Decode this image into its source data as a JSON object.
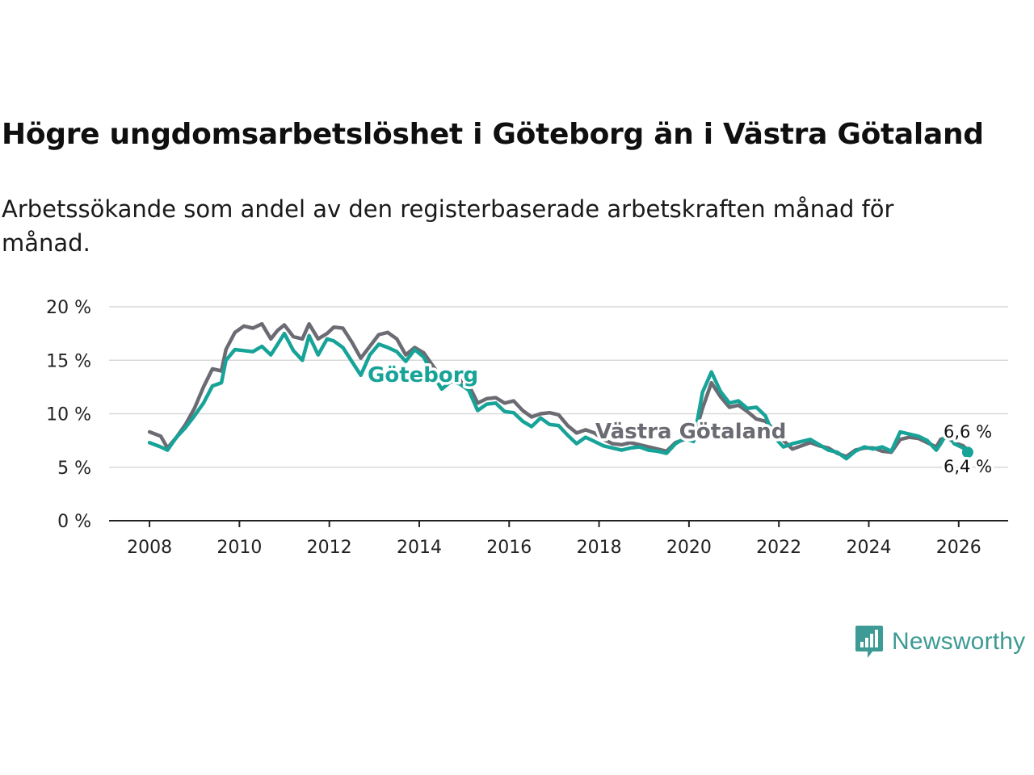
{
  "header": {
    "title": "Högre ungdomsarbetslöshet i Göteborg än i Västra Götaland",
    "subtitle": "Arbetssökande som andel av den registerbaserade arbetskraften månad för månad."
  },
  "brand": {
    "name": "Newsworthy",
    "icon": "newsworthy-chart-icon"
  },
  "colors": {
    "goteborg": "#17a398",
    "vastra": "#6b6b73",
    "grid": "#d9d9d9",
    "axis": "#222222",
    "brand": "#3d9a94"
  },
  "chart_data": {
    "type": "line",
    "title": "Högre ungdomsarbetslöshet i Göteborg än i Västra Götaland",
    "xlabel": "",
    "ylabel": "",
    "xlim": [
      2007.1,
      2027.1
    ],
    "ylim": [
      0,
      20
    ],
    "x_ticks": [
      2008,
      2010,
      2012,
      2014,
      2016,
      2018,
      2020,
      2022,
      2024,
      2026
    ],
    "y_ticks": [
      0,
      5,
      10,
      15,
      20
    ],
    "y_tick_labels": [
      "0 %",
      "5 %",
      "10 %",
      "15 %",
      "20 %"
    ],
    "series": [
      {
        "name": "Västra Götaland",
        "label": "Västra Götaland",
        "end_label": "6,6 %",
        "points": [
          [
            2008.0,
            8.3
          ],
          [
            2008.25,
            7.9
          ],
          [
            2008.4,
            6.8
          ],
          [
            2008.6,
            7.8
          ],
          [
            2008.8,
            9.0
          ],
          [
            2009.0,
            10.5
          ],
          [
            2009.2,
            12.5
          ],
          [
            2009.4,
            14.2
          ],
          [
            2009.6,
            14.0
          ],
          [
            2009.7,
            16.0
          ],
          [
            2009.9,
            17.6
          ],
          [
            2010.1,
            18.2
          ],
          [
            2010.3,
            18.0
          ],
          [
            2010.5,
            18.4
          ],
          [
            2010.7,
            17.0
          ],
          [
            2010.85,
            17.8
          ],
          [
            2011.0,
            18.3
          ],
          [
            2011.2,
            17.2
          ],
          [
            2011.4,
            17.0
          ],
          [
            2011.55,
            18.4
          ],
          [
            2011.75,
            17.0
          ],
          [
            2011.95,
            17.5
          ],
          [
            2012.1,
            18.1
          ],
          [
            2012.3,
            18.0
          ],
          [
            2012.5,
            16.7
          ],
          [
            2012.7,
            15.2
          ],
          [
            2012.9,
            16.3
          ],
          [
            2013.1,
            17.4
          ],
          [
            2013.3,
            17.6
          ],
          [
            2013.5,
            17.0
          ],
          [
            2013.7,
            15.5
          ],
          [
            2013.9,
            16.2
          ],
          [
            2014.1,
            15.7
          ],
          [
            2014.3,
            14.5
          ],
          [
            2014.5,
            13.3
          ],
          [
            2014.7,
            13.8
          ],
          [
            2014.9,
            13.2
          ],
          [
            2015.1,
            12.7
          ],
          [
            2015.3,
            11.0
          ],
          [
            2015.5,
            11.4
          ],
          [
            2015.7,
            11.5
          ],
          [
            2015.9,
            11.0
          ],
          [
            2016.1,
            11.2
          ],
          [
            2016.3,
            10.3
          ],
          [
            2016.5,
            9.7
          ],
          [
            2016.7,
            10.0
          ],
          [
            2016.9,
            10.1
          ],
          [
            2017.1,
            9.9
          ],
          [
            2017.3,
            8.9
          ],
          [
            2017.5,
            8.2
          ],
          [
            2017.7,
            8.5
          ],
          [
            2017.9,
            8.2
          ],
          [
            2018.1,
            7.6
          ],
          [
            2018.3,
            7.2
          ],
          [
            2018.5,
            7.1
          ],
          [
            2018.7,
            7.3
          ],
          [
            2018.9,
            7.1
          ],
          [
            2019.1,
            6.9
          ],
          [
            2019.3,
            6.7
          ],
          [
            2019.5,
            6.5
          ],
          [
            2019.7,
            7.3
          ],
          [
            2019.9,
            7.6
          ],
          [
            2020.1,
            7.6
          ],
          [
            2020.3,
            10.5
          ],
          [
            2020.5,
            12.9
          ],
          [
            2020.7,
            11.6
          ],
          [
            2020.9,
            10.6
          ],
          [
            2021.1,
            10.8
          ],
          [
            2021.3,
            10.2
          ],
          [
            2021.5,
            9.5
          ],
          [
            2021.7,
            9.3
          ],
          [
            2021.9,
            8.5
          ],
          [
            2022.1,
            7.5
          ],
          [
            2022.3,
            6.7
          ],
          [
            2022.5,
            7.0
          ],
          [
            2022.7,
            7.3
          ],
          [
            2022.9,
            7.0
          ],
          [
            2023.1,
            6.8
          ],
          [
            2023.3,
            6.3
          ],
          [
            2023.5,
            6.0
          ],
          [
            2023.7,
            6.6
          ],
          [
            2023.9,
            6.8
          ],
          [
            2024.1,
            6.8
          ],
          [
            2024.3,
            6.5
          ],
          [
            2024.5,
            6.4
          ],
          [
            2024.7,
            7.6
          ],
          [
            2024.9,
            7.8
          ],
          [
            2025.1,
            7.7
          ],
          [
            2025.3,
            7.3
          ],
          [
            2025.5,
            6.9
          ],
          [
            2025.6,
            7.6
          ],
          [
            2025.75,
            7.8
          ],
          [
            2025.9,
            7.3
          ],
          [
            2026.1,
            7.0
          ],
          [
            2026.2,
            6.6
          ]
        ]
      },
      {
        "name": "Göteborg",
        "label": "Göteborg",
        "end_label": "6,4 %",
        "points": [
          [
            2008.0,
            7.3
          ],
          [
            2008.25,
            6.9
          ],
          [
            2008.4,
            6.6
          ],
          [
            2008.6,
            7.8
          ],
          [
            2008.8,
            8.7
          ],
          [
            2009.0,
            9.8
          ],
          [
            2009.2,
            11.0
          ],
          [
            2009.4,
            12.6
          ],
          [
            2009.6,
            12.9
          ],
          [
            2009.7,
            15.0
          ],
          [
            2009.9,
            16.0
          ],
          [
            2010.1,
            15.9
          ],
          [
            2010.3,
            15.8
          ],
          [
            2010.5,
            16.3
          ],
          [
            2010.7,
            15.5
          ],
          [
            2010.85,
            16.5
          ],
          [
            2011.0,
            17.5
          ],
          [
            2011.2,
            15.9
          ],
          [
            2011.4,
            15.0
          ],
          [
            2011.55,
            17.3
          ],
          [
            2011.75,
            15.5
          ],
          [
            2011.95,
            17.0
          ],
          [
            2012.1,
            16.8
          ],
          [
            2012.3,
            16.2
          ],
          [
            2012.5,
            14.9
          ],
          [
            2012.7,
            13.6
          ],
          [
            2012.9,
            15.5
          ],
          [
            2013.1,
            16.5
          ],
          [
            2013.3,
            16.2
          ],
          [
            2013.5,
            15.8
          ],
          [
            2013.7,
            14.9
          ],
          [
            2013.9,
            16.0
          ],
          [
            2014.1,
            15.3
          ],
          [
            2014.3,
            13.7
          ],
          [
            2014.5,
            12.3
          ],
          [
            2014.7,
            13.0
          ],
          [
            2014.9,
            12.8
          ],
          [
            2015.1,
            12.2
          ],
          [
            2015.3,
            10.3
          ],
          [
            2015.5,
            10.9
          ],
          [
            2015.7,
            11.0
          ],
          [
            2015.9,
            10.2
          ],
          [
            2016.1,
            10.1
          ],
          [
            2016.3,
            9.3
          ],
          [
            2016.5,
            8.8
          ],
          [
            2016.7,
            9.6
          ],
          [
            2016.9,
            9.0
          ],
          [
            2017.1,
            8.9
          ],
          [
            2017.3,
            8.0
          ],
          [
            2017.5,
            7.2
          ],
          [
            2017.7,
            7.8
          ],
          [
            2017.9,
            7.4
          ],
          [
            2018.1,
            7.0
          ],
          [
            2018.3,
            6.8
          ],
          [
            2018.5,
            6.6
          ],
          [
            2018.7,
            6.8
          ],
          [
            2018.9,
            6.9
          ],
          [
            2019.1,
            6.6
          ],
          [
            2019.3,
            6.5
          ],
          [
            2019.5,
            6.3
          ],
          [
            2019.7,
            7.2
          ],
          [
            2019.9,
            7.7
          ],
          [
            2020.1,
            7.4
          ],
          [
            2020.3,
            12.0
          ],
          [
            2020.5,
            13.9
          ],
          [
            2020.7,
            12.1
          ],
          [
            2020.9,
            11.0
          ],
          [
            2021.1,
            11.2
          ],
          [
            2021.3,
            10.5
          ],
          [
            2021.5,
            10.6
          ],
          [
            2021.7,
            9.8
          ],
          [
            2021.9,
            7.8
          ],
          [
            2022.1,
            6.9
          ],
          [
            2022.3,
            7.2
          ],
          [
            2022.5,
            7.4
          ],
          [
            2022.7,
            7.6
          ],
          [
            2022.9,
            7.1
          ],
          [
            2023.1,
            6.6
          ],
          [
            2023.3,
            6.4
          ],
          [
            2023.5,
            5.8
          ],
          [
            2023.7,
            6.5
          ],
          [
            2023.9,
            6.9
          ],
          [
            2024.1,
            6.7
          ],
          [
            2024.3,
            6.9
          ],
          [
            2024.5,
            6.5
          ],
          [
            2024.7,
            8.3
          ],
          [
            2024.9,
            8.1
          ],
          [
            2025.1,
            7.9
          ],
          [
            2025.3,
            7.5
          ],
          [
            2025.5,
            6.6
          ],
          [
            2025.6,
            7.2
          ],
          [
            2025.75,
            8.3
          ],
          [
            2025.9,
            7.2
          ],
          [
            2026.1,
            6.8
          ],
          [
            2026.2,
            6.4
          ]
        ]
      }
    ]
  }
}
